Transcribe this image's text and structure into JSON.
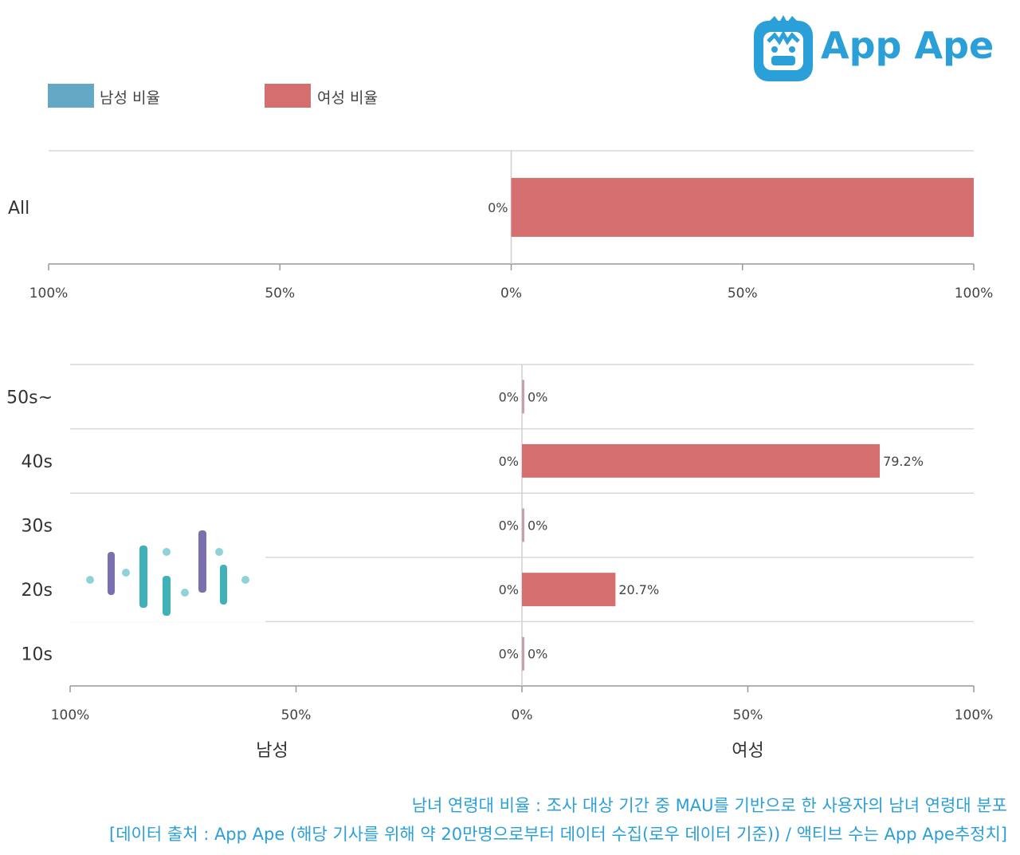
{
  "brand": {
    "name": "App Ape",
    "icon": "ape-face-icon",
    "color": "#2a9fd8"
  },
  "legend": [
    {
      "label": "남성 비율",
      "color": "#65a8c6"
    },
    {
      "label": "여성 비율",
      "color": "#d56e6e"
    }
  ],
  "chart_data": [
    {
      "type": "bar",
      "orientation": "horizontal-diverging",
      "categories": [
        "All"
      ],
      "series": [
        {
          "name": "남성 비율",
          "values": [
            0
          ],
          "labels": [
            "0%"
          ]
        },
        {
          "name": "여성 비율",
          "values": [
            100
          ],
          "labels": [
            ""
          ]
        }
      ],
      "ticks": [
        "100%",
        "50%",
        "0%",
        "50%",
        "100%"
      ],
      "xlim": [
        -100,
        100
      ],
      "grid": true
    },
    {
      "type": "bar",
      "orientation": "horizontal-diverging",
      "categories": [
        "50s~",
        "40s",
        "30s",
        "20s",
        "10s"
      ],
      "series": [
        {
          "name": "남성 비율",
          "values": [
            0,
            0,
            0,
            0,
            0
          ],
          "labels": [
            "0%",
            "0%",
            "0%",
            "0%",
            "0%"
          ]
        },
        {
          "name": "여성 비율",
          "values": [
            0,
            79.2,
            0,
            20.7,
            0
          ],
          "labels": [
            "0%",
            "79.2%",
            "0%",
            "20.7%",
            "0%"
          ]
        }
      ],
      "ticks": [
        "100%",
        "50%",
        "0%",
        "50%",
        "100%"
      ],
      "xlim": [
        -100,
        100
      ],
      "grid": true,
      "xlabel_left": "남성",
      "xlabel_right": "여성"
    }
  ],
  "footer": {
    "line1": "남녀 연령대 비율 : 조사 대상 기간 중 MAU를 기반으로 한 사용자의 남녀 연령대 분포",
    "line2": "[데이터 출처 : App Ape (해당 기사를 위해 약 20만명으로부터 데이터 수집(로우 데이터 기준)) / 액티브 수는 App Ape추정치]"
  }
}
